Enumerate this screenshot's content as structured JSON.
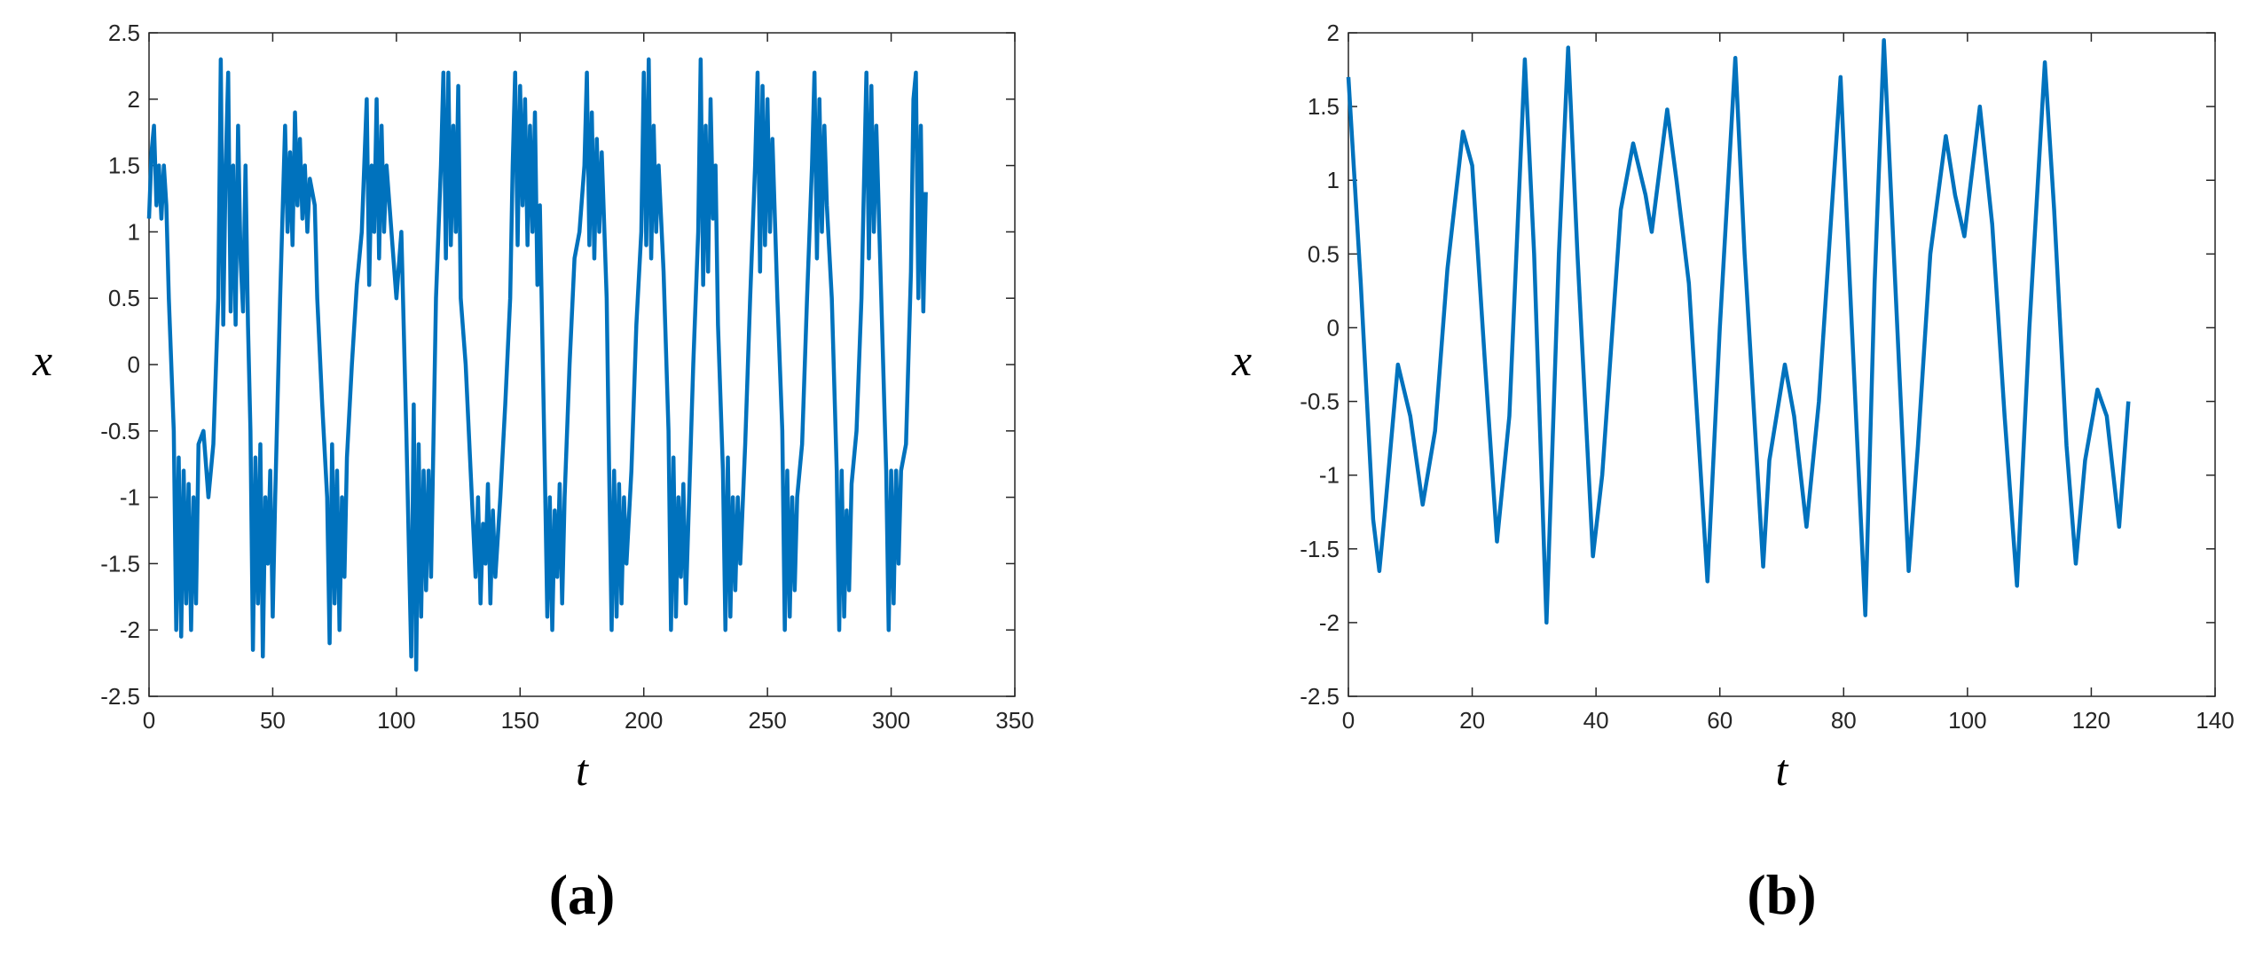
{
  "chart_data": [
    {
      "type": "line",
      "xlabel": "t",
      "ylabel": "x",
      "label": "(a)",
      "xlim": [
        0,
        350
      ],
      "ylim": [
        -2.5,
        2.5
      ],
      "xticks": [
        0,
        50,
        100,
        150,
        200,
        250,
        300,
        350
      ],
      "yticks": [
        -2.5,
        -2,
        -1.5,
        -1,
        -0.5,
        0,
        0.5,
        1,
        1.5,
        2,
        2.5
      ],
      "x": [
        0,
        1,
        2,
        3,
        4,
        5,
        6,
        7,
        8,
        10,
        11,
        12,
        13,
        14,
        15,
        16,
        17,
        18,
        19,
        20,
        22,
        24,
        26,
        28,
        29,
        30,
        31,
        32,
        33,
        34,
        35,
        36,
        37,
        38,
        39,
        40,
        41,
        42,
        43,
        44,
        45,
        46,
        47,
        48,
        49,
        50,
        51,
        53,
        55,
        56,
        57,
        58,
        59,
        60,
        61,
        62,
        63,
        64,
        65,
        67,
        68,
        70,
        72,
        73,
        74,
        75,
        76,
        77,
        78,
        79,
        80,
        82,
        84,
        86,
        88,
        89,
        90,
        91,
        92,
        93,
        94,
        95,
        96,
        98,
        100,
        102,
        104,
        106,
        107,
        108,
        109,
        110,
        111,
        112,
        113,
        114,
        116,
        118,
        119,
        120,
        121,
        122,
        123,
        124,
        125,
        126,
        128,
        130,
        132,
        133,
        134,
        135,
        136,
        137,
        138,
        139,
        140,
        142,
        144,
        146,
        147,
        148,
        149,
        150,
        151,
        152,
        153,
        154,
        155,
        156,
        157,
        158,
        160,
        161,
        162,
        163,
        164,
        165,
        166,
        167,
        168,
        170,
        172,
        174,
        176,
        177,
        178,
        179,
        180,
        181,
        182,
        183,
        185,
        186,
        187,
        188,
        189,
        190,
        191,
        192,
        193,
        195,
        197,
        199,
        200,
        201,
        202,
        203,
        204,
        205,
        206,
        208,
        210,
        211,
        212,
        213,
        214,
        215,
        216,
        217,
        218,
        220,
        222,
        223,
        224,
        225,
        226,
        227,
        228,
        229,
        230,
        232,
        233,
        234,
        235,
        236,
        237,
        238,
        239,
        241,
        243,
        245,
        246,
        247,
        248,
        249,
        250,
        251,
        252,
        254,
        256,
        257,
        258,
        259,
        260,
        261,
        262,
        264,
        266,
        268,
        269,
        270,
        271,
        272,
        273,
        274,
        276,
        278,
        279,
        280,
        281,
        282,
        283,
        284,
        286,
        288,
        290,
        291,
        292,
        293,
        294,
        296,
        298,
        299,
        300,
        301,
        302,
        303,
        304,
        306,
        308,
        309,
        310,
        311,
        312,
        313,
        314
      ],
      "series": [
        {
          "color": "#0072bd",
          "values": [
            1.1,
            1.6,
            1.8,
            1.2,
            1.5,
            1.1,
            1.5,
            1.2,
            0.5,
            -0.5,
            -2.0,
            -0.7,
            -2.05,
            -0.8,
            -1.8,
            -0.9,
            -2.0,
            -1.0,
            -1.8,
            -0.6,
            -0.5,
            -1.0,
            -0.6,
            0.5,
            2.3,
            0.3,
            1.5,
            2.2,
            0.4,
            1.5,
            0.3,
            1.8,
            0.8,
            0.4,
            1.5,
            0.3,
            -0.5,
            -2.15,
            -0.7,
            -1.8,
            -0.6,
            -2.2,
            -1.0,
            -1.5,
            -0.8,
            -1.9,
            -1.0,
            0.5,
            1.8,
            1.0,
            1.6,
            0.9,
            1.9,
            1.2,
            1.7,
            1.1,
            1.5,
            1.0,
            1.4,
            1.2,
            0.5,
            -0.3,
            -1.0,
            -2.1,
            -0.6,
            -1.8,
            -0.8,
            -2.0,
            -1.0,
            -1.6,
            -0.7,
            0.0,
            0.6,
            1.0,
            2.0,
            0.6,
            1.5,
            1.0,
            2.0,
            0.8,
            1.8,
            1.0,
            1.5,
            1.0,
            0.5,
            1.0,
            -0.5,
            -2.2,
            -0.3,
            -2.3,
            -0.6,
            -1.9,
            -0.8,
            -1.7,
            -0.8,
            -1.6,
            0.5,
            1.5,
            2.2,
            0.8,
            2.2,
            0.9,
            1.8,
            1.0,
            2.1,
            0.5,
            0.0,
            -0.8,
            -1.6,
            -1.0,
            -1.8,
            -1.2,
            -1.5,
            -0.9,
            -1.8,
            -1.1,
            -1.6,
            -1.0,
            -0.3,
            0.5,
            1.5,
            2.2,
            0.9,
            2.1,
            1.2,
            2.0,
            0.9,
            1.8,
            1.0,
            1.9,
            0.6,
            1.2,
            -0.8,
            -1.9,
            -1.0,
            -2.0,
            -1.1,
            -1.6,
            -0.9,
            -1.8,
            -1.0,
            0.0,
            0.8,
            1.0,
            1.5,
            2.2,
            0.9,
            1.9,
            0.8,
            1.7,
            1.0,
            1.6,
            0.5,
            -0.8,
            -2.0,
            -0.8,
            -1.9,
            -0.9,
            -1.8,
            -1.0,
            -1.5,
            -0.8,
            0.3,
            1.0,
            2.2,
            0.9,
            2.3,
            0.8,
            1.8,
            1.0,
            1.5,
            0.7,
            -0.5,
            -2.0,
            -0.7,
            -1.9,
            -1.0,
            -1.6,
            -0.9,
            -1.8,
            -1.2,
            0.0,
            1.0,
            2.3,
            0.6,
            1.8,
            0.7,
            2.0,
            1.1,
            1.5,
            0.3,
            -0.8,
            -2.0,
            -0.7,
            -1.9,
            -1.0,
            -1.7,
            -1.0,
            -1.5,
            -0.6,
            0.5,
            1.5,
            2.2,
            0.7,
            2.1,
            0.9,
            2.0,
            1.0,
            1.7,
            0.5,
            -0.5,
            -2.0,
            -0.8,
            -1.9,
            -1.0,
            -1.7,
            -1.0,
            -0.6,
            0.5,
            1.5,
            2.2,
            0.8,
            2.0,
            1.0,
            1.8,
            1.2,
            0.5,
            -0.8,
            -2.0,
            -0.8,
            -1.9,
            -1.1,
            -1.7,
            -0.9,
            -0.5,
            0.5,
            2.2,
            0.8,
            2.1,
            1.0,
            1.8,
            0.5,
            -0.8,
            -2.0,
            -0.8,
            -1.8,
            -0.8,
            -1.5,
            -0.8,
            -0.6,
            0.7,
            2.0,
            2.2,
            0.5,
            1.8,
            0.4,
            1.3
          ]
        }
      ]
    },
    {
      "type": "line",
      "xlabel": "t",
      "ylabel": "x",
      "label": "(b)",
      "xlim": [
        0,
        140
      ],
      "ylim": [
        -2.5,
        2
      ],
      "xticks": [
        0,
        20,
        40,
        60,
        80,
        100,
        120,
        140
      ],
      "yticks": [
        -2.5,
        -2,
        -1.5,
        -1,
        -0.5,
        0,
        0.5,
        1,
        1.5,
        2
      ],
      "x": [
        0,
        2,
        4,
        5,
        6,
        8,
        10,
        12,
        14,
        16,
        18.5,
        20,
        22,
        24,
        26,
        28.5,
        30,
        32,
        34,
        35.5,
        37,
        39.5,
        41,
        44,
        46,
        48,
        49,
        51.5,
        53,
        55,
        58,
        60,
        62.5,
        64,
        67,
        68,
        70.5,
        72,
        74,
        76,
        79.5,
        81,
        83.5,
        85,
        86.5,
        88,
        90.5,
        92,
        94,
        96.5,
        98,
        99.5,
        102,
        104,
        106,
        108,
        110,
        112.5,
        114,
        116,
        117.5,
        119,
        121,
        122.5,
        124.5,
        126
      ],
      "series": [
        {
          "color": "#0072bd",
          "values": [
            1.7,
            0.3,
            -1.3,
            -1.65,
            -1.2,
            -0.25,
            -0.6,
            -1.2,
            -0.7,
            0.4,
            1.33,
            1.1,
            -0.2,
            -1.45,
            -0.6,
            1.82,
            0.5,
            -2.0,
            0.5,
            1.9,
            0.5,
            -1.55,
            -1.0,
            0.8,
            1.25,
            0.9,
            0.65,
            1.48,
            1.0,
            0.3,
            -1.72,
            0.0,
            1.83,
            0.5,
            -1.62,
            -0.9,
            -0.25,
            -0.6,
            -1.35,
            -0.5,
            1.7,
            0.3,
            -1.95,
            0.3,
            1.95,
            0.6,
            -1.65,
            -0.8,
            0.5,
            1.3,
            0.9,
            0.62,
            1.5,
            0.7,
            -0.6,
            -1.75,
            0.0,
            1.8,
            0.8,
            -0.8,
            -1.6,
            -0.9,
            -0.42,
            -0.6,
            -1.35,
            -0.5
          ]
        }
      ]
    }
  ]
}
